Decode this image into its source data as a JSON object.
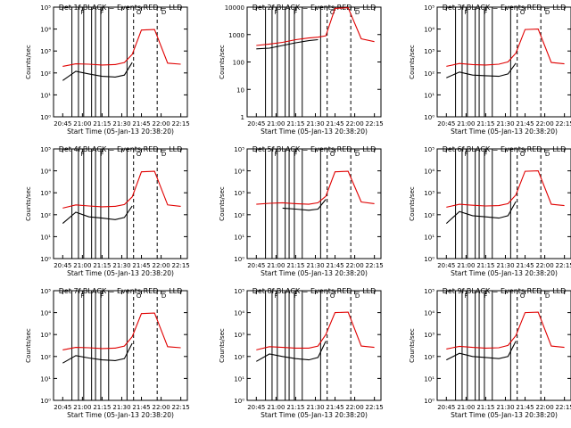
{
  "colors": {
    "events": "#000000",
    "lld": "#e00000",
    "axis": "#000000",
    "background": "#ffffff"
  },
  "common": {
    "xlabel": "Start Time (05-Jan-13 20:38:20)",
    "ylabel": "Counts/sec",
    "x_tick_labels": [
      "20:45",
      "21:00",
      "21:15",
      "21:30",
      "21:45",
      "22:00",
      "22:15"
    ],
    "event_markers": [
      {
        "label": "F",
        "time": "21:00"
      },
      {
        "label": "F",
        "time": "21:15"
      },
      {
        "label": "O",
        "time": "21:43"
      },
      {
        "label": "D",
        "time": "22:02"
      }
    ]
  },
  "chart_data": [
    {
      "type": "line",
      "title": "Det 1f  BLACK = Events  RED = LLD",
      "ylabel": "Counts/sec",
      "xlabel": "Start Time (05-Jan-13 20:38:20)",
      "yscale": "log",
      "ylim": [
        1,
        100000
      ],
      "y_ticks": [
        "10⁰",
        "10¹",
        "10²",
        "10³",
        "10⁴",
        "10⁵"
      ],
      "x": [
        "20:45",
        "20:55",
        "21:05",
        "21:15",
        "21:25",
        "21:32",
        "21:38",
        "21:45",
        "21:55",
        "22:05",
        "22:15"
      ],
      "series": [
        {
          "name": "Events",
          "color": "#000000",
          "values": [
            45,
            120,
            90,
            70,
            65,
            80,
            300,
            null,
            null,
            null,
            null
          ]
        },
        {
          "name": "LLD",
          "color": "#e00000",
          "values": [
            200,
            260,
            250,
            230,
            240,
            300,
            700,
            9000,
            9500,
            280,
            250
          ]
        }
      ]
    },
    {
      "type": "line",
      "title": "Det 2f  BLACK = Events  RED = LLD",
      "ylabel": "Counts/sec",
      "xlabel": "Start Time (05-Jan-13 20:38:20)",
      "yscale": "log",
      "ylim": [
        1,
        10000
      ],
      "y_ticks": [
        "1",
        "10",
        "100",
        "1000",
        "10000"
      ],
      "x": [
        "20:45",
        "20:55",
        "21:05",
        "21:15",
        "21:25",
        "21:32",
        "21:38",
        "21:45",
        "21:55",
        "22:05",
        "22:15"
      ],
      "series": [
        {
          "name": "Events",
          "color": "#000000",
          "values": [
            300,
            320,
            400,
            500,
            600,
            650,
            null,
            null,
            null,
            null,
            null
          ]
        },
        {
          "name": "LLD",
          "color": "#e00000",
          "values": [
            400,
            450,
            520,
            650,
            750,
            800,
            900,
            9000,
            9500,
            700,
            550
          ]
        }
      ]
    },
    {
      "type": "line",
      "title": "Det 3f  BLACK = Events  RED = LLD",
      "ylabel": "Counts/sec",
      "xlabel": "Start Time (05-Jan-13 20:38:20)",
      "yscale": "log",
      "ylim": [
        1,
        100000
      ],
      "y_ticks": [
        "10⁰",
        "10¹",
        "10²",
        "10³",
        "10⁴",
        "10⁵"
      ],
      "x": [
        "20:45",
        "20:55",
        "21:05",
        "21:15",
        "21:25",
        "21:32",
        "21:38",
        "21:45",
        "21:55",
        "22:05",
        "22:15"
      ],
      "series": [
        {
          "name": "Events",
          "color": "#000000",
          "values": [
            60,
            110,
            80,
            75,
            70,
            90,
            280,
            null,
            null,
            null,
            null
          ]
        },
        {
          "name": "LLD",
          "color": "#e00000",
          "values": [
            200,
            270,
            240,
            230,
            250,
            320,
            800,
            9500,
            10000,
            300,
            260
          ]
        }
      ]
    },
    {
      "type": "line",
      "title": "Det 4f  BLACK = Events  RED = LLD",
      "ylabel": "Counts/sec",
      "xlabel": "Start Time (05-Jan-13 20:38:20)",
      "yscale": "log",
      "ylim": [
        1,
        100000
      ],
      "y_ticks": [
        "10⁰",
        "10¹",
        "10²",
        "10³",
        "10⁴",
        "10⁵"
      ],
      "x": [
        "20:45",
        "20:55",
        "21:05",
        "21:15",
        "21:25",
        "21:32",
        "21:38",
        "21:45",
        "21:55",
        "22:05",
        "22:15"
      ],
      "series": [
        {
          "name": "Events",
          "color": "#000000",
          "values": [
            40,
            130,
            80,
            70,
            60,
            75,
            250,
            null,
            null,
            null,
            null
          ]
        },
        {
          "name": "LLD",
          "color": "#e00000",
          "values": [
            200,
            280,
            250,
            230,
            240,
            290,
            650,
            9000,
            9500,
            280,
            240
          ]
        }
      ]
    },
    {
      "type": "line",
      "title": "Det 5f  BLACK = Events  RED = LLD",
      "ylabel": "Counts/sec",
      "xlabel": "Start Time (05-Jan-13 20:38:20)",
      "yscale": "log",
      "ylim": [
        1,
        100000
      ],
      "y_ticks": [
        "10⁰",
        "10¹",
        "10²",
        "10³",
        "10⁴",
        "10⁵"
      ],
      "x": [
        "20:45",
        "20:55",
        "21:05",
        "21:15",
        "21:25",
        "21:32",
        "21:38",
        "21:45",
        "21:55",
        "22:05",
        "22:15"
      ],
      "series": [
        {
          "name": "Events",
          "color": "#000000",
          "values": [
            null,
            null,
            200,
            180,
            160,
            180,
            500,
            null,
            null,
            null,
            null
          ]
        },
        {
          "name": "LLD",
          "color": "#e00000",
          "values": [
            300,
            330,
            350,
            320,
            300,
            350,
            700,
            9000,
            9500,
            380,
            320
          ]
        }
      ]
    },
    {
      "type": "line",
      "title": "Det 6f  BLACK = Events  RED = LLD",
      "ylabel": "Counts/sec",
      "xlabel": "Start Time (05-Jan-13 20:38:20)",
      "yscale": "log",
      "ylim": [
        1,
        100000
      ],
      "y_ticks": [
        "10⁰",
        "10¹",
        "10²",
        "10³",
        "10⁴",
        "10⁵"
      ],
      "x": [
        "20:45",
        "20:55",
        "21:05",
        "21:15",
        "21:25",
        "21:32",
        "21:38",
        "21:45",
        "21:55",
        "22:05",
        "22:15"
      ],
      "series": [
        {
          "name": "Events",
          "color": "#000000",
          "values": [
            40,
            140,
            90,
            80,
            70,
            90,
            400,
            null,
            null,
            null,
            null
          ]
        },
        {
          "name": "LLD",
          "color": "#e00000",
          "values": [
            220,
            300,
            270,
            250,
            260,
            320,
            800,
            9500,
            10000,
            300,
            260
          ]
        }
      ]
    },
    {
      "type": "line",
      "title": "Det 7f  BLACK = Events  RED = LLD",
      "ylabel": "Counts/sec",
      "xlabel": "Start Time (05-Jan-13 20:38:20)",
      "yscale": "log",
      "ylim": [
        1,
        100000
      ],
      "y_ticks": [
        "10⁰",
        "10¹",
        "10²",
        "10³",
        "10⁴",
        "10⁵"
      ],
      "x": [
        "20:45",
        "20:55",
        "21:05",
        "21:15",
        "21:25",
        "21:32",
        "21:38",
        "21:45",
        "21:55",
        "22:05",
        "22:15"
      ],
      "series": [
        {
          "name": "Events",
          "color": "#000000",
          "values": [
            50,
            110,
            85,
            70,
            65,
            80,
            400,
            null,
            null,
            null,
            null
          ]
        },
        {
          "name": "LLD",
          "color": "#e00000",
          "values": [
            200,
            260,
            250,
            230,
            240,
            300,
            800,
            9000,
            9500,
            280,
            250
          ]
        }
      ]
    },
    {
      "type": "line",
      "title": "Det 8f  BLACK = Events  RED = LLD",
      "ylabel": "Counts/sec",
      "xlabel": "Start Time (05-Jan-13 20:38:20)",
      "yscale": "log",
      "ylim": [
        1,
        100000
      ],
      "y_ticks": [
        "10⁰",
        "10¹",
        "10²",
        "10³",
        "10⁴",
        "10⁵"
      ],
      "x": [
        "20:45",
        "20:55",
        "21:05",
        "21:15",
        "21:25",
        "21:32",
        "21:38",
        "21:45",
        "21:55",
        "22:05",
        "22:15"
      ],
      "series": [
        {
          "name": "Events",
          "color": "#000000",
          "values": [
            60,
            130,
            100,
            80,
            70,
            90,
            500,
            null,
            null,
            null,
            null
          ]
        },
        {
          "name": "LLD",
          "color": "#e00000",
          "values": [
            200,
            280,
            260,
            240,
            240,
            300,
            1000,
            10000,
            10500,
            300,
            260
          ]
        }
      ]
    },
    {
      "type": "line",
      "title": "Det 9f  BLACK = Events  RED = LLD",
      "ylabel": "Counts/sec",
      "xlabel": "Start Time (05-Jan-13 20:38:20)",
      "yscale": "log",
      "ylim": [
        1,
        100000
      ],
      "y_ticks": [
        "10⁰",
        "10¹",
        "10²",
        "10³",
        "10⁴",
        "10⁵"
      ],
      "x": [
        "20:45",
        "20:55",
        "21:05",
        "21:15",
        "21:25",
        "21:32",
        "21:38",
        "21:45",
        "21:55",
        "22:05",
        "22:15"
      ],
      "series": [
        {
          "name": "Events",
          "color": "#000000",
          "values": [
            70,
            140,
            100,
            90,
            80,
            100,
            500,
            null,
            null,
            null,
            null
          ]
        },
        {
          "name": "LLD",
          "color": "#e00000",
          "values": [
            220,
            290,
            260,
            240,
            250,
            320,
            900,
            10000,
            10500,
            300,
            260
          ]
        }
      ]
    }
  ]
}
